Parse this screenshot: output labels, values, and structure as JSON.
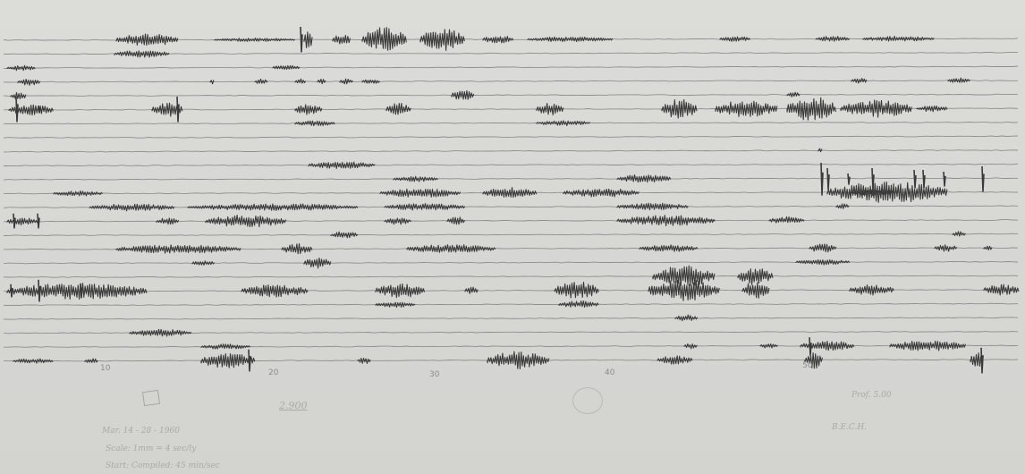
{
  "image": {
    "description_kind": "seismogram",
    "ink_color": "#3a3a3a",
    "trace_color": "#8e8e8c",
    "paper_color": "#d9d9d6"
  },
  "minute_marks": [
    "10",
    "20",
    "30",
    "40",
    "50"
  ],
  "annotations": {
    "number": "2.900",
    "note_right_1": "Prof. 5.00",
    "note_right_2": "B.E.C.H.",
    "note_left_1": "Mar. 14 - 28 - 1960",
    "note_left_2": "Scale: 1mm = 4 sec/ly",
    "note_left_3": "Start: Compiled: 45 min/sec"
  }
}
